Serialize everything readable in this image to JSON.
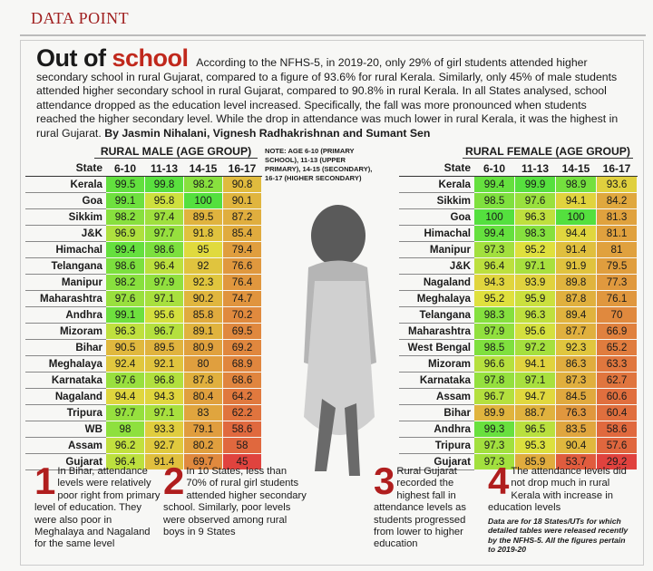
{
  "header": {
    "label": "DATA POINT"
  },
  "article": {
    "title_prefix": "Out of",
    "title_highlight": "school",
    "body": "According to the NFHS-5, in 2019-20, only 29% of girl students attended higher secondary school in rural Gujarat, compared to a figure of 93.6% for rural Kerala. Similarly, only 45% of male students attended higher secondary school in rural Gujarat, compared to 90.8% in rural Kerala. In all States analysed, school attendance dropped as the education level increased. Specifically, the fall was more pronounced when students reached the higher secondary level. While the drop in attendance was much lower in rural Kerala, it was the highest in rural Gujarat.",
    "byline": "By Jasmin Nihalani, Vignesh Radhakrishnan and Sumant Sen"
  },
  "note": "NOTE: AGE 6-10 (PRIMARY SCHOOL), 11-13 (UPPER PRIMARY), 14-15 (SECONDARY), 16-17 (HIGHER SECONDARY)",
  "male_table": {
    "title": "RURAL MALE (AGE GROUP)",
    "columns": [
      "State",
      "6-10",
      "11-13",
      "14-15",
      "16-17"
    ],
    "rows": [
      {
        "state": "Kerala",
        "values": [
          99.5,
          99.8,
          98.2,
          90.8
        ]
      },
      {
        "state": "Goa",
        "values": [
          99.1,
          95.8,
          100,
          90.1
        ]
      },
      {
        "state": "Sikkim",
        "values": [
          98.2,
          97.4,
          89.5,
          87.2
        ]
      },
      {
        "state": "J&K",
        "values": [
          96.9,
          97.7,
          91.8,
          85.4
        ]
      },
      {
        "state": "Himachal",
        "values": [
          99.4,
          98.6,
          95,
          79.4
        ]
      },
      {
        "state": "Telangana",
        "values": [
          98.6,
          96.4,
          92,
          76.6
        ]
      },
      {
        "state": "Manipur",
        "values": [
          98.2,
          97.9,
          92.3,
          76.4
        ]
      },
      {
        "state": "Maharashtra",
        "values": [
          97.6,
          97.1,
          90.2,
          74.7
        ]
      },
      {
        "state": "Andhra",
        "values": [
          99.1,
          95.6,
          85.8,
          70.2
        ]
      },
      {
        "state": "Mizoram",
        "values": [
          96.3,
          96.7,
          89.1,
          69.5
        ]
      },
      {
        "state": "Bihar",
        "values": [
          90.5,
          89.5,
          80.9,
          69.2
        ]
      },
      {
        "state": "Meghalaya",
        "values": [
          92.4,
          92.1,
          80,
          68.9
        ]
      },
      {
        "state": "Karnataka",
        "values": [
          97.6,
          96.8,
          87.8,
          68.6
        ]
      },
      {
        "state": "Nagaland",
        "values": [
          94.4,
          94.3,
          80.4,
          64.2
        ]
      },
      {
        "state": "Tripura",
        "values": [
          97.7,
          97.1,
          83,
          62.2
        ]
      },
      {
        "state": "WB",
        "values": [
          98,
          93.3,
          79.1,
          58.6
        ]
      },
      {
        "state": "Assam",
        "values": [
          96.2,
          92.7,
          80.2,
          58
        ]
      },
      {
        "state": "Gujarat",
        "values": [
          96.4,
          91.4,
          69.7,
          45
        ]
      }
    ]
  },
  "female_table": {
    "title": "RURAL FEMALE (AGE GROUP)",
    "columns": [
      "State",
      "6-10",
      "11-13",
      "14-15",
      "16-17"
    ],
    "rows": [
      {
        "state": "Kerala",
        "values": [
          99.4,
          99.9,
          98.9,
          93.6
        ]
      },
      {
        "state": "Sikkim",
        "values": [
          98.5,
          97.6,
          94.1,
          84.2
        ]
      },
      {
        "state": "Goa",
        "values": [
          100,
          96.3,
          100,
          81.3
        ]
      },
      {
        "state": "Himachal",
        "values": [
          99.4,
          98.3,
          94.4,
          81.1
        ]
      },
      {
        "state": "Manipur",
        "values": [
          97.3,
          95.2,
          91.4,
          81
        ]
      },
      {
        "state": "J&K",
        "values": [
          96.4,
          97.1,
          91.9,
          79.5
        ]
      },
      {
        "state": "Nagaland",
        "values": [
          94.3,
          93.9,
          89.8,
          77.3
        ]
      },
      {
        "state": "Meghalaya",
        "values": [
          95.2,
          95.9,
          87.8,
          76.1
        ]
      },
      {
        "state": "Telangana",
        "values": [
          98.3,
          96.3,
          89.4,
          70
        ]
      },
      {
        "state": "Maharashtra",
        "values": [
          97.9,
          95.6,
          87.7,
          66.9
        ]
      },
      {
        "state": "West Bengal",
        "values": [
          98.5,
          97.2,
          92.3,
          65.2
        ]
      },
      {
        "state": "Mizoram",
        "values": [
          96.6,
          94.1,
          86.3,
          63.3
        ]
      },
      {
        "state": "Karnataka",
        "values": [
          97.8,
          97.1,
          87.3,
          62.7
        ]
      },
      {
        "state": "Assam",
        "values": [
          96.7,
          94.7,
          84.5,
          60.6
        ]
      },
      {
        "state": "Bihar",
        "values": [
          89.9,
          88.7,
          76.3,
          60.4
        ]
      },
      {
        "state": "Andhra",
        "values": [
          99.3,
          96.5,
          83.5,
          58.6
        ]
      },
      {
        "state": "Tripura",
        "values": [
          97.3,
          95.3,
          90.4,
          57.6
        ]
      },
      {
        "state": "Gujarat",
        "values": [
          97.3,
          85.9,
          53.7,
          29.2
        ]
      }
    ]
  },
  "footnotes": [
    {
      "number": "1",
      "text": "In Bihar, attendance levels were relatively poor right from primary level of education. They were also poor in Meghalaya and Nagaland for the same level"
    },
    {
      "number": "2",
      "text": "In 10 States, less than 70% of rural girl students attended higher secondary school. Similarly, poor levels were observed among rural boys in 9 States"
    },
    {
      "number": "3",
      "text": "Rural Gujarat recorded the highest fall in attendance levels as students progressed from lower to higher education"
    },
    {
      "number": "4",
      "text": "The attendance levels did not drop much in rural Kerala with increase in education levels",
      "source": "Data are for 18 States/UTs for which detailed tables were released recently by the NFHS-5. All the figures pertain to 2019-20"
    }
  ]
}
